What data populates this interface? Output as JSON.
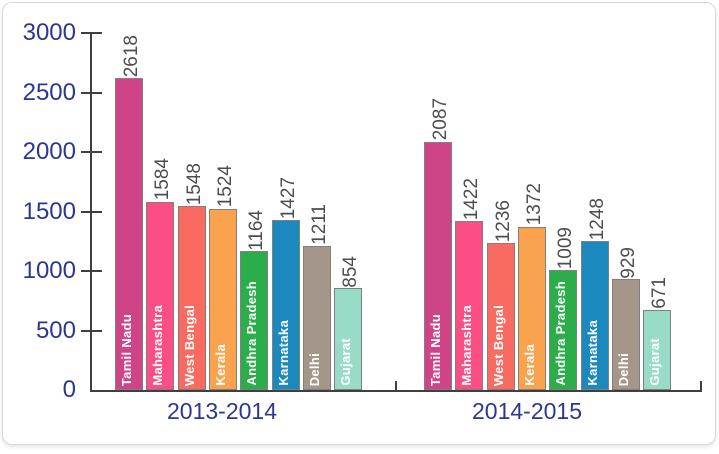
{
  "chart_data": {
    "type": "bar",
    "title": "",
    "groups": [
      "2013-2014",
      "2014-2015"
    ],
    "categories": [
      "Tamil Nadu",
      "Maharashtra",
      "West Bengal",
      "Kerala",
      "Andhra Pradesh",
      "Karnataka",
      "Delhi",
      "Gujarat"
    ],
    "series": [
      {
        "name": "2013-2014",
        "values": [
          2618,
          1584,
          1548,
          1524,
          1164,
          1427,
          1211,
          854
        ]
      },
      {
        "name": "2014-2015",
        "values": [
          2087,
          1422,
          1236,
          1372,
          1009,
          1248,
          929,
          671
        ]
      }
    ],
    "value_labels_shown": true,
    "ylim": [
      0,
      3000
    ],
    "yticks": [
      0,
      500,
      1000,
      1500,
      2000,
      2500,
      3000
    ],
    "grid": false,
    "legend": "none",
    "colors": {
      "bars": [
        "#CF4487",
        "#FB4E84",
        "#F96A60",
        "#F9A34E",
        "#2BAE4A",
        "#1C89BE",
        "#A4978A",
        "#98DBC6"
      ],
      "bar_border": "#808080",
      "axis_text": "#2C3792",
      "value_label": "#4D4D4D",
      "category_label": "#FFFFFF",
      "axis_line": "#3F3F3F"
    }
  }
}
